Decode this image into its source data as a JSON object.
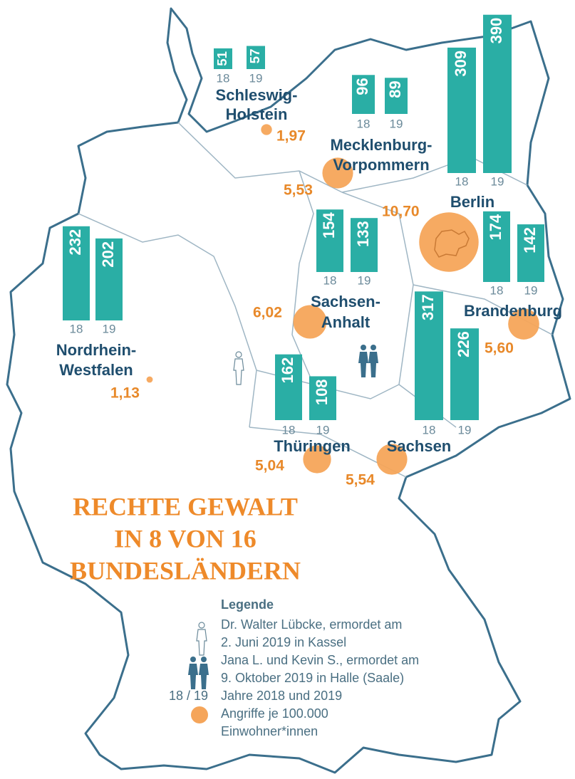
{
  "title_lines": [
    "RECHTE GEWALT",
    "IN 8 VON 16",
    "BUNDESLÄNDERN"
  ],
  "years": [
    "18",
    "19"
  ],
  "regions": [
    {
      "name_lines": [
        "Schleswig-",
        "Holstein"
      ],
      "values": [
        51,
        57
      ],
      "rate": {
        "value": 1.97,
        "label": "1,97"
      }
    },
    {
      "name_lines": [
        "Mecklenburg-",
        "Vorpommern"
      ],
      "values": [
        96,
        89
      ],
      "rate": {
        "value": 5.53,
        "label": "5,53"
      }
    },
    {
      "name_lines": [
        "Berlin"
      ],
      "values": [
        309,
        390
      ],
      "rate": {
        "value": 10.7,
        "label": "10,70"
      }
    },
    {
      "name_lines": [
        "Brandenburg"
      ],
      "values": [
        174,
        142
      ],
      "rate": {
        "value": 5.6,
        "label": "5,60"
      }
    },
    {
      "name_lines": [
        "Sachsen-",
        "Anhalt"
      ],
      "values": [
        154,
        133
      ],
      "rate": {
        "value": 6.02,
        "label": "6,02"
      }
    },
    {
      "name_lines": [
        "Nordrhein-",
        "Westfalen"
      ],
      "values": [
        232,
        202
      ],
      "rate": {
        "value": 1.13,
        "label": "1,13"
      }
    },
    {
      "name_lines": [
        "Thüringen"
      ],
      "values": [
        162,
        108
      ],
      "rate": {
        "value": 5.04,
        "label": "5,04"
      }
    },
    {
      "name_lines": [
        "Sachsen"
      ],
      "values": [
        317,
        226
      ],
      "rate": {
        "value": 5.54,
        "label": "5,54"
      }
    }
  ],
  "legend": {
    "title": "Legende",
    "years_label": "18 / 19",
    "entries": [
      {
        "lines": [
          "Dr. Walter Lübcke, ermordet am",
          "2. Juni 2019 in Kassel"
        ]
      },
      {
        "lines": [
          "Jana L. und Kevin S., ermordet am",
          "9. Oktober 2019 in Halle (Saale)"
        ]
      },
      {
        "lines": [
          "Jahre 2018 und 2019"
        ]
      },
      {
        "lines": [
          "Angriffe je 100.000",
          "Einwohner*innen"
        ]
      }
    ]
  }
}
